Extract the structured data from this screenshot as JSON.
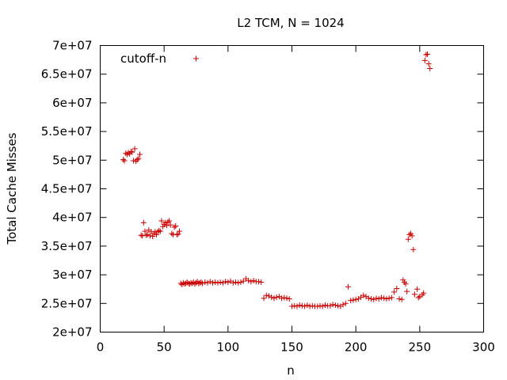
{
  "chart_data": {
    "type": "scatter",
    "title": "L2 TCM, N = 1024",
    "xlabel": "n",
    "ylabel": "Total Cache Misses",
    "xlim": [
      0,
      300
    ],
    "ylim": [
      20000000,
      70000000
    ],
    "xticks": [
      0,
      50,
      100,
      150,
      200,
      250,
      300
    ],
    "xtick_labels": [
      "0",
      "50",
      "100",
      "150",
      "200",
      "250",
      "300"
    ],
    "yticks": [
      20000000,
      25000000,
      30000000,
      35000000,
      40000000,
      45000000,
      50000000,
      55000000,
      60000000,
      65000000,
      70000000
    ],
    "ytick_labels": [
      "2e+07",
      "2.5e+07",
      "3e+07",
      "3.5e+07",
      "4e+07",
      "4.5e+07",
      "5e+07",
      "5.5e+07",
      "6e+07",
      "6.5e+07",
      "7e+07"
    ],
    "grid": false,
    "legend_position": "top-left",
    "marker": "plus",
    "series": [
      {
        "name": "cutoff-n",
        "color": "#cc0000",
        "points": [
          [
            18,
            50100000
          ],
          [
            19,
            49900000
          ],
          [
            20,
            51200000
          ],
          [
            21,
            51000000
          ],
          [
            22,
            51300000
          ],
          [
            23,
            51100000
          ],
          [
            24,
            51500000
          ],
          [
            25,
            51400000
          ],
          [
            26,
            49900000
          ],
          [
            27,
            52000000
          ],
          [
            28,
            49800000
          ],
          [
            29,
            50100000
          ],
          [
            30,
            50300000
          ],
          [
            31,
            51000000
          ],
          [
            32,
            36900000
          ],
          [
            33,
            36800000
          ],
          [
            34,
            39100000
          ],
          [
            35,
            37600000
          ],
          [
            36,
            36900000
          ],
          [
            37,
            37000000
          ],
          [
            38,
            37800000
          ],
          [
            39,
            36800000
          ],
          [
            40,
            37500000
          ],
          [
            41,
            36700000
          ],
          [
            42,
            37200000
          ],
          [
            43,
            37500000
          ],
          [
            44,
            37000000
          ],
          [
            45,
            37500000
          ],
          [
            46,
            37700000
          ],
          [
            47,
            37600000
          ],
          [
            48,
            39400000
          ],
          [
            49,
            38400000
          ],
          [
            50,
            38800000
          ],
          [
            51,
            39100000
          ],
          [
            52,
            38600000
          ],
          [
            53,
            39200000
          ],
          [
            54,
            39400000
          ],
          [
            55,
            38700000
          ],
          [
            56,
            37200000
          ],
          [
            57,
            37000000
          ],
          [
            58,
            38300000
          ],
          [
            59,
            38500000
          ],
          [
            60,
            37000000
          ],
          [
            61,
            37100000
          ],
          [
            62,
            37600000
          ],
          [
            63,
            28500000
          ],
          [
            64,
            28300000
          ],
          [
            65,
            28600000
          ],
          [
            66,
            28400000
          ],
          [
            67,
            28500000
          ],
          [
            68,
            28700000
          ],
          [
            69,
            28500000
          ],
          [
            70,
            28400000
          ],
          [
            71,
            28600000
          ],
          [
            72,
            28500000
          ],
          [
            73,
            28700000
          ],
          [
            74,
            28400000
          ],
          [
            75,
            28600000
          ],
          [
            76,
            28800000
          ],
          [
            77,
            28500000
          ],
          [
            78,
            28600000
          ],
          [
            79,
            28700000
          ],
          [
            80,
            28500000
          ],
          [
            82,
            28700000
          ],
          [
            84,
            28600000
          ],
          [
            86,
            28800000
          ],
          [
            88,
            28600000
          ],
          [
            90,
            28700000
          ],
          [
            92,
            28600000
          ],
          [
            94,
            28700000
          ],
          [
            96,
            28600000
          ],
          [
            98,
            28800000
          ],
          [
            100,
            28700000
          ],
          [
            102,
            28900000
          ],
          [
            104,
            28600000
          ],
          [
            106,
            28700000
          ],
          [
            108,
            28600000
          ],
          [
            110,
            28700000
          ],
          [
            112,
            28900000
          ],
          [
            114,
            29300000
          ],
          [
            116,
            29000000
          ],
          [
            118,
            28800000
          ],
          [
            120,
            29000000
          ],
          [
            122,
            28800000
          ],
          [
            124,
            28800000
          ],
          [
            126,
            28700000
          ],
          [
            128,
            25900000
          ],
          [
            130,
            26400000
          ],
          [
            132,
            26300000
          ],
          [
            134,
            26100000
          ],
          [
            136,
            25900000
          ],
          [
            138,
            26100000
          ],
          [
            140,
            26200000
          ],
          [
            142,
            25900000
          ],
          [
            144,
            26000000
          ],
          [
            146,
            25900000
          ],
          [
            148,
            25800000
          ],
          [
            150,
            24500000
          ],
          [
            152,
            24600000
          ],
          [
            154,
            24500000
          ],
          [
            156,
            24700000
          ],
          [
            158,
            24600000
          ],
          [
            160,
            24500000
          ],
          [
            162,
            24700000
          ],
          [
            164,
            24500000
          ],
          [
            166,
            24600000
          ],
          [
            168,
            24500000
          ],
          [
            170,
            24500000
          ],
          [
            172,
            24600000
          ],
          [
            174,
            24500000
          ],
          [
            176,
            24700000
          ],
          [
            178,
            24600000
          ],
          [
            180,
            24600000
          ],
          [
            182,
            24800000
          ],
          [
            184,
            24700000
          ],
          [
            186,
            24600000
          ],
          [
            188,
            24500000
          ],
          [
            190,
            24800000
          ],
          [
            192,
            25000000
          ],
          [
            194,
            27900000
          ],
          [
            196,
            25500000
          ],
          [
            198,
            25600000
          ],
          [
            200,
            25700000
          ],
          [
            202,
            25800000
          ],
          [
            204,
            26100000
          ],
          [
            206,
            26400000
          ],
          [
            208,
            26200000
          ],
          [
            210,
            25900000
          ],
          [
            212,
            25800000
          ],
          [
            214,
            25700000
          ],
          [
            216,
            25900000
          ],
          [
            218,
            25800000
          ],
          [
            220,
            26000000
          ],
          [
            222,
            25900000
          ],
          [
            224,
            25800000
          ],
          [
            226,
            25900000
          ],
          [
            228,
            26000000
          ],
          [
            230,
            27000000
          ],
          [
            232,
            27600000
          ],
          [
            234,
            25800000
          ],
          [
            236,
            25700000
          ],
          [
            237,
            29100000
          ],
          [
            238,
            28700000
          ],
          [
            239,
            28400000
          ],
          [
            240,
            27100000
          ],
          [
            241,
            36200000
          ],
          [
            242,
            37000000
          ],
          [
            243,
            37200000
          ],
          [
            244,
            36800000
          ],
          [
            245,
            34400000
          ],
          [
            246,
            26600000
          ],
          [
            248,
            27500000
          ],
          [
            249,
            26000000
          ],
          [
            250,
            26200000
          ],
          [
            252,
            26500000
          ],
          [
            253,
            26800000
          ],
          [
            254,
            67400000
          ],
          [
            255,
            68400000
          ],
          [
            256,
            68500000
          ],
          [
            257,
            66800000
          ],
          [
            258,
            66000000
          ]
        ]
      }
    ],
    "legend_sample": "+"
  }
}
